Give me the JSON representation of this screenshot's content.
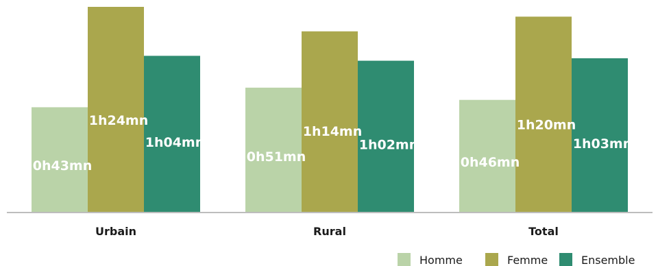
{
  "chart_data": {
    "type": "bar",
    "title": "",
    "xlabel": "",
    "ylabel": "",
    "categories": [
      "Urbain",
      "Rural",
      "Total"
    ],
    "ylim_minutes": [
      0,
      84
    ],
    "grid": false,
    "legend": "bottom-right",
    "series": [
      {
        "name": "Homme",
        "color": "#bad3a8",
        "values": [
          43,
          51,
          46
        ],
        "labels": [
          "0h43mn",
          "0h51mn",
          "0h46mn"
        ]
      },
      {
        "name": "Femme",
        "color": "#aaa74d",
        "values": [
          84,
          74,
          80
        ],
        "labels": [
          "1h24mn",
          "1h14mn",
          "1h20mn"
        ]
      },
      {
        "name": "Ensemble",
        "color": "#2f8c71",
        "values": [
          64,
          62,
          63
        ],
        "labels": [
          "1h04mn",
          "1h02mn",
          "1h03mn"
        ]
      }
    ]
  }
}
